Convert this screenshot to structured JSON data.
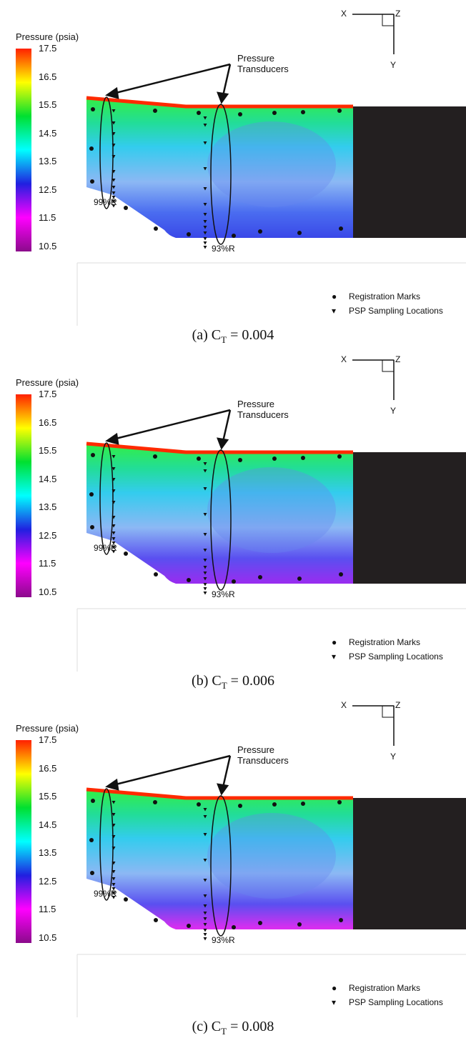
{
  "legend_title": "Pressure (psia)",
  "ticks": [
    "17.5",
    "16.5",
    "15.5",
    "14.5",
    "13.5",
    "12.5",
    "11.5",
    "10.5"
  ],
  "colormap": [
    "#8b0a8b",
    "#ff00ff",
    "#2020e0",
    "#00ffff",
    "#00e030",
    "#ffff00",
    "#ff2000"
  ],
  "annotation": "Pressure\nTransducers",
  "label_99": "99%R",
  "label_93": "93%R",
  "axis": {
    "x": "X",
    "z": "Z",
    "y": "Y"
  },
  "legend": {
    "marks": "Registration Marks",
    "sampling": "PSP Sampling Locations",
    "mark_sym": "●",
    "sampling_sym": "▾"
  },
  "panels": [
    {
      "caption_prefix": "(a) C",
      "caption_sub": "T",
      "caption_value": " = 0.004"
    },
    {
      "caption_prefix": "(b) C",
      "caption_sub": "T",
      "caption_value": " = 0.006"
    },
    {
      "caption_prefix": "(c) C",
      "caption_sub": "T",
      "caption_value": " = 0.008"
    }
  ]
}
